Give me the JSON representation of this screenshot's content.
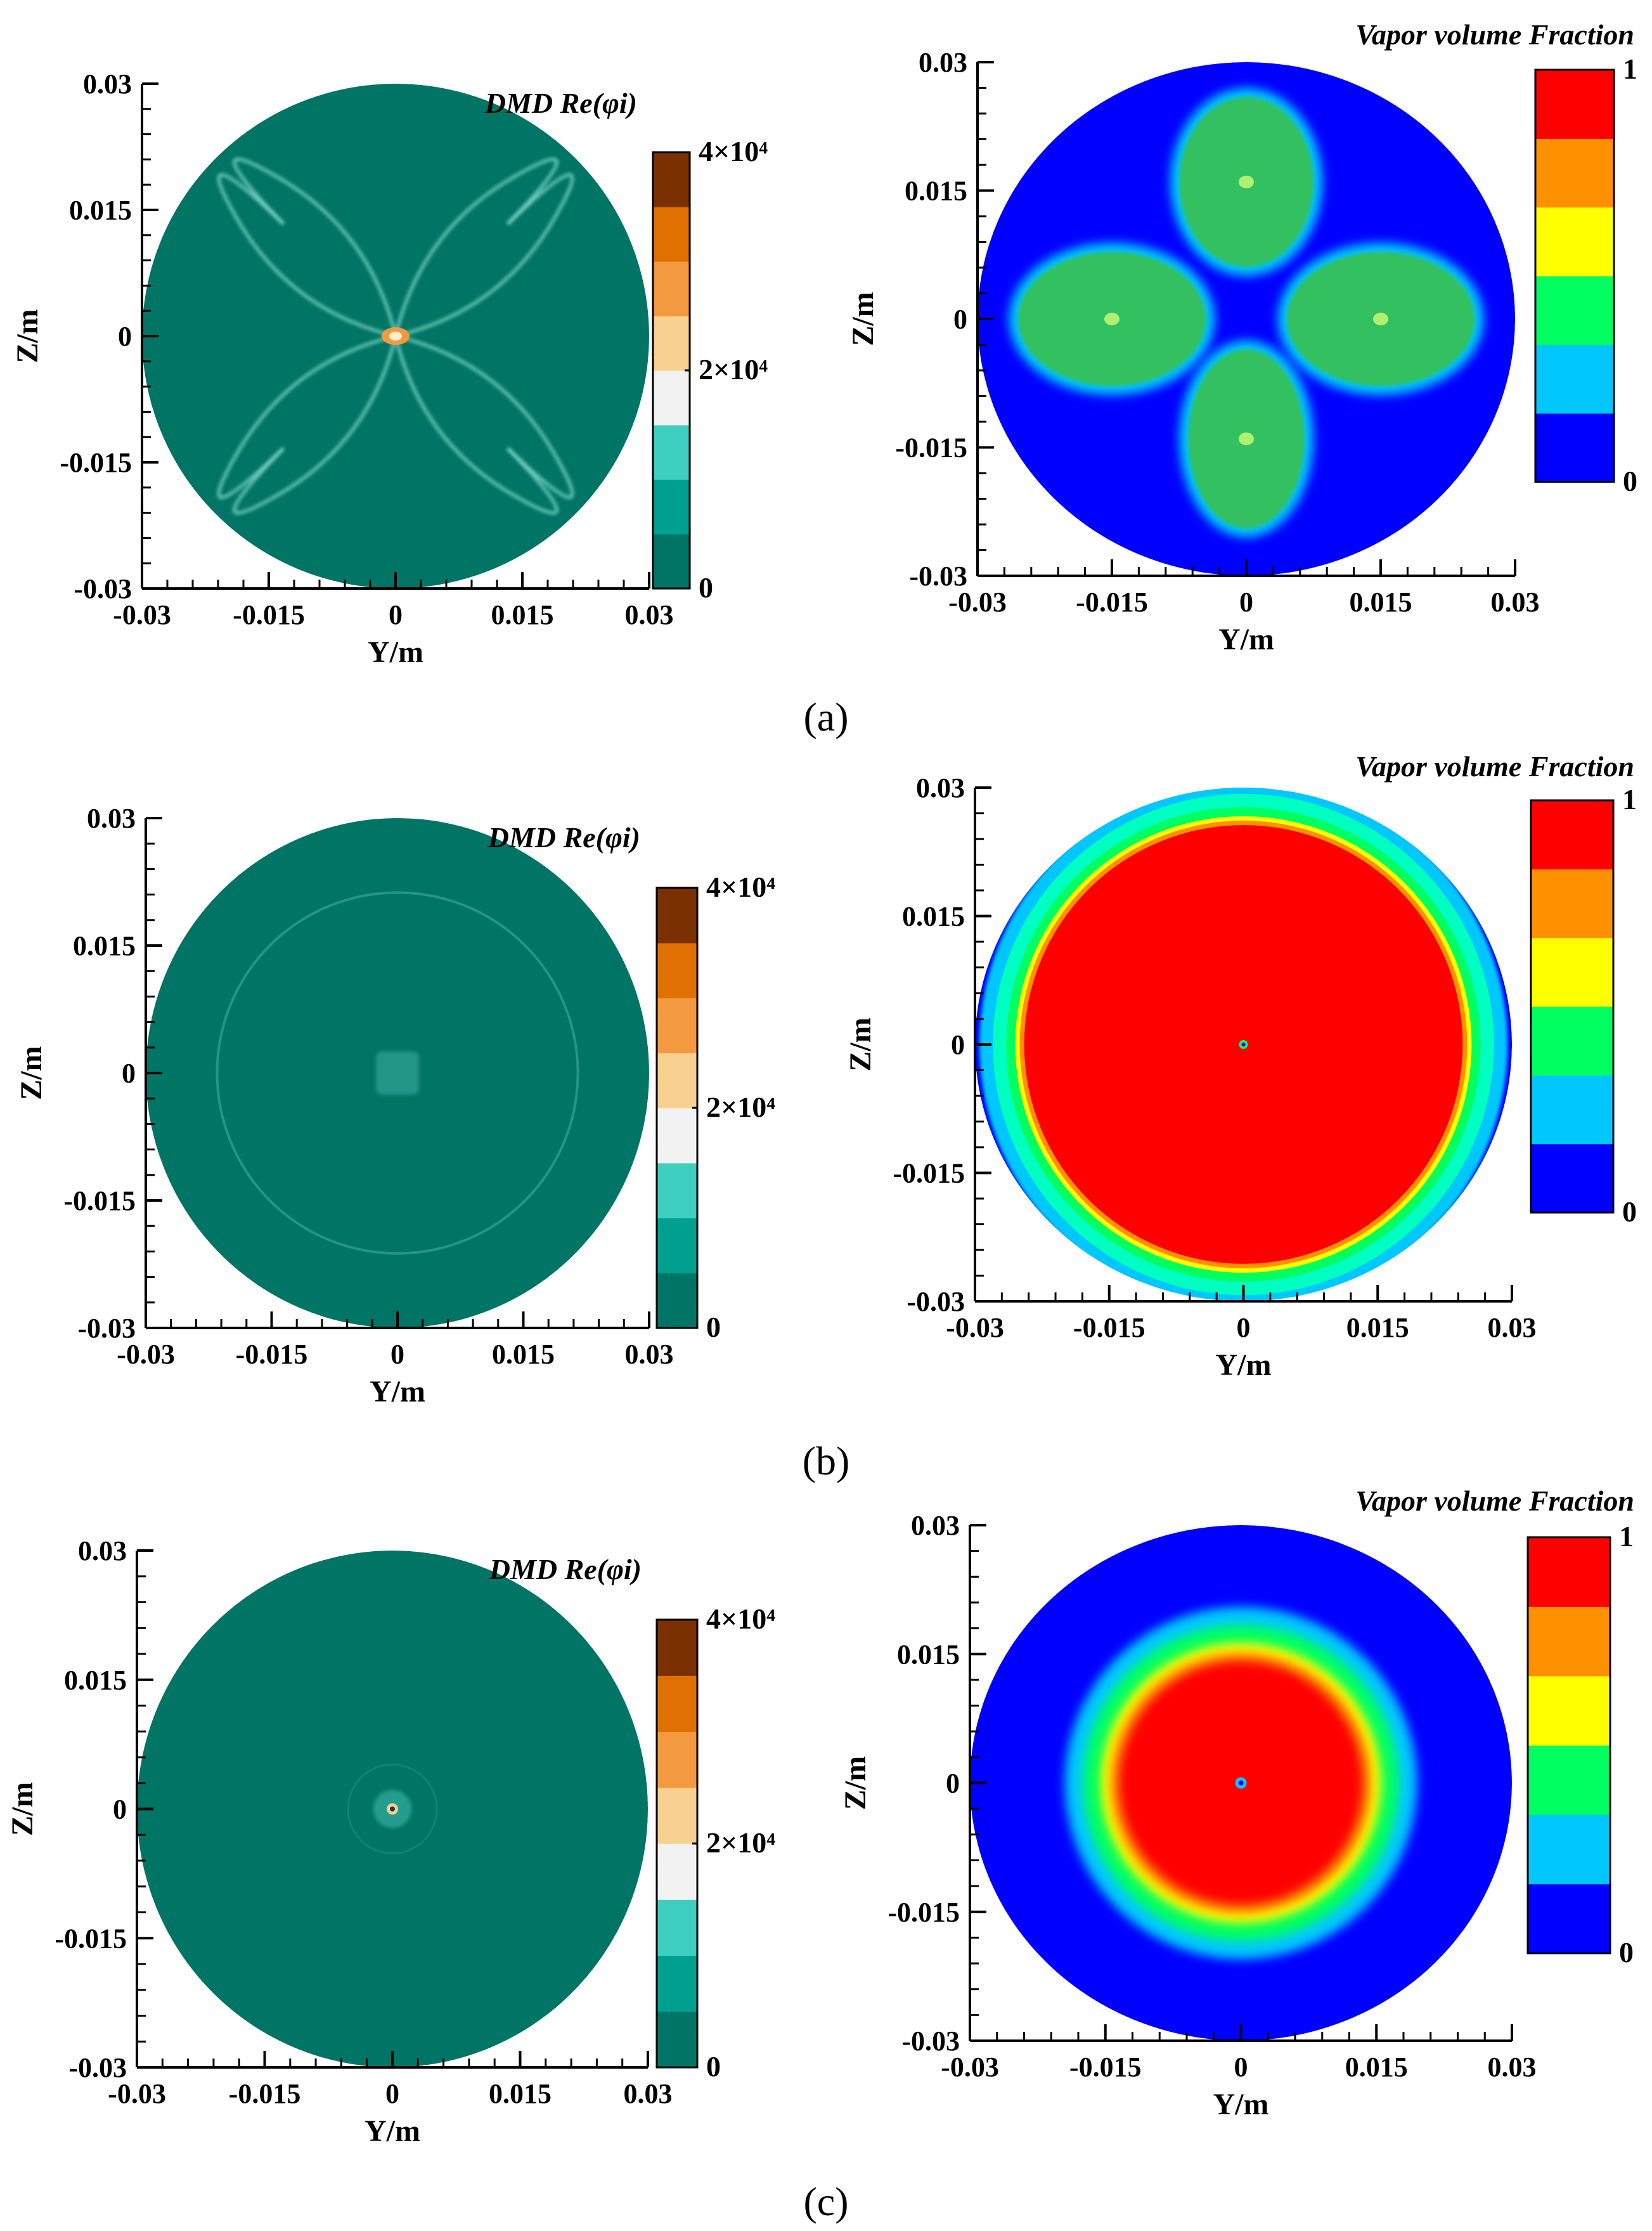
{
  "colors": {
    "dmd_background": "#007565",
    "dmd_colormap": [
      "#007565",
      "#00A090",
      "#3FCFC0",
      "#F2F2F2",
      "#F8D090",
      "#F39A40",
      "#E07000",
      "#7A3000"
    ],
    "vapor_colormap": [
      "#0000FF",
      "#00C8FF",
      "#00FF60",
      "#FFFF00",
      "#FF9000",
      "#FF0000"
    ],
    "contour_shape_a": "#33C060",
    "vapor_low": "#0000FF",
    "vapor_high": "#FF0000"
  },
  "chart_data": [
    {
      "id": "a-dmd",
      "type": "heatmap",
      "panel": "a",
      "xlabel": "Y/m",
      "ylabel": "Z/m",
      "xlim": [
        -0.03,
        0.03
      ],
      "ylim": [
        -0.03,
        0.03
      ],
      "xticks": [
        "-0.03",
        "-0.015",
        "0",
        "0.015",
        "0.03"
      ],
      "yticks": [
        "-0.03",
        "-0.015",
        "0",
        "0.015",
        "0.03"
      ],
      "colorbar": {
        "title": "DMD Re(φi)",
        "range": [
          0,
          40000
        ],
        "labels": [
          "4×10⁴",
          "2×10⁴",
          "0"
        ]
      },
      "field": "DMD mode real part on circular cross-section",
      "features": [
        "four-lobe filament pattern around center",
        "high-amplitude peak at center"
      ]
    },
    {
      "id": "a-vapor",
      "type": "heatmap",
      "panel": "a",
      "xlabel": "Y/m",
      "ylabel": "Z/m",
      "xlim": [
        -0.03,
        0.03
      ],
      "ylim": [
        -0.03,
        0.03
      ],
      "xticks": [
        "-0.03",
        "-0.015",
        "0",
        "0.015",
        "0.03"
      ],
      "yticks": [
        "-0.03",
        "-0.015",
        "0",
        "0.015",
        "0.03"
      ],
      "colorbar": {
        "title": "Vapor volume Fraction",
        "range": [
          0,
          1
        ],
        "labels": [
          "1",
          "0"
        ]
      },
      "features": [
        "four vapor lobes centered near (0, 0.015), (0, -0.015), (0.015, 0), (-0.015, 0)"
      ]
    },
    {
      "id": "b-dmd",
      "type": "heatmap",
      "panel": "b",
      "xlabel": "Y/m",
      "ylabel": "Z/m",
      "xlim": [
        -0.03,
        0.03
      ],
      "ylim": [
        -0.03,
        0.03
      ],
      "xticks": [
        "-0.03",
        "-0.015",
        "0",
        "0.015",
        "0.03"
      ],
      "yticks": [
        "-0.03",
        "-0.015",
        "0",
        "0.015",
        "0.03"
      ],
      "colorbar": {
        "title": "DMD Re(φi)",
        "range": [
          0,
          40000
        ],
        "labels": [
          "4×10⁴",
          "2×10⁴",
          "0"
        ]
      },
      "features": [
        "faint ring at radius ~0.0215",
        "small square feature at center"
      ]
    },
    {
      "id": "b-vapor",
      "type": "heatmap",
      "panel": "b",
      "xlabel": "Y/m",
      "ylabel": "Z/m",
      "xlim": [
        -0.03,
        0.03
      ],
      "ylim": [
        -0.03,
        0.03
      ],
      "xticks": [
        "-0.03",
        "-0.015",
        "0",
        "0.015",
        "0.03"
      ],
      "yticks": [
        "-0.03",
        "-0.015",
        "0",
        "0.015",
        "0.03"
      ],
      "colorbar": {
        "title": "Vapor volume Fraction",
        "range": [
          0,
          1
        ],
        "labels": [
          "1",
          "0"
        ]
      },
      "features": [
        "vapor fraction 1 inside radius ~0.025, decreasing to 0 at wall"
      ]
    },
    {
      "id": "c-dmd",
      "type": "heatmap",
      "panel": "c",
      "xlabel": "Y/m",
      "ylabel": "Z/m",
      "xlim": [
        -0.03,
        0.03
      ],
      "ylim": [
        -0.03,
        0.03
      ],
      "xticks": [
        "-0.03",
        "-0.015",
        "0",
        "0.015",
        "0.03"
      ],
      "yticks": [
        "-0.03",
        "-0.015",
        "0",
        "0.015",
        "0.03"
      ],
      "colorbar": {
        "title": "DMD Re(φi)",
        "range": [
          0,
          40000
        ],
        "labels": [
          "4×10⁴",
          "2×10⁴",
          "0"
        ]
      },
      "features": [
        "small bright feature at center"
      ]
    },
    {
      "id": "c-vapor",
      "type": "heatmap",
      "panel": "c",
      "xlabel": "Y/m",
      "ylabel": "Z/m",
      "xlim": [
        -0.03,
        0.03
      ],
      "ylim": [
        -0.03,
        0.03
      ],
      "xticks": [
        "-0.03",
        "-0.015",
        "0",
        "0.015",
        "0.03"
      ],
      "yticks": [
        "-0.03",
        "-0.015",
        "0",
        "0.015",
        "0.03"
      ],
      "colorbar": {
        "title": "Vapor volume Fraction",
        "range": [
          0,
          1
        ],
        "labels": [
          "1",
          "0"
        ]
      },
      "features": [
        "vapor fraction 1 inside radius ~0.013, falling to 0 by radius ~0.019"
      ]
    }
  ],
  "captions": [
    "(a)",
    "(b)",
    "(c)"
  ]
}
